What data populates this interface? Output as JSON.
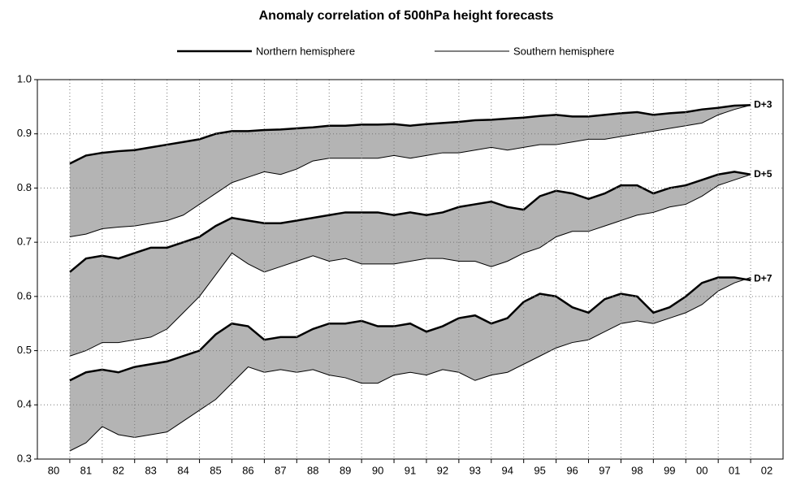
{
  "chart_data": {
    "type": "band",
    "title": "Anomaly correlation of 500hPa height forecasts",
    "legend": {
      "northern": {
        "name": "Northern hemisphere",
        "width": 2.5
      },
      "southern": {
        "name": "Southern hemisphere",
        "width": 1
      }
    },
    "band_color": "#b4b4b4",
    "x": [
      1981,
      1981.5,
      1982,
      1982.5,
      1983,
      1983.5,
      1984,
      1984.5,
      1985,
      1985.5,
      1986,
      1986.5,
      1987,
      1987.5,
      1988,
      1988.5,
      1989,
      1989.5,
      1990,
      1990.5,
      1991,
      1991.5,
      1992,
      1992.5,
      1993,
      1993.5,
      1994,
      1994.5,
      1995,
      1995.5,
      1996,
      1996.5,
      1997,
      1997.5,
      1998,
      1998.5,
      1999,
      1999.5,
      2000,
      2000.5,
      2001,
      2001.5,
      2002
    ],
    "bands": [
      {
        "label": "D+3",
        "northern": [
          0.845,
          0.86,
          0.865,
          0.868,
          0.87,
          0.875,
          0.88,
          0.885,
          0.89,
          0.9,
          0.905,
          0.905,
          0.907,
          0.908,
          0.91,
          0.912,
          0.915,
          0.915,
          0.917,
          0.917,
          0.918,
          0.915,
          0.918,
          0.92,
          0.922,
          0.925,
          0.926,
          0.928,
          0.93,
          0.933,
          0.935,
          0.932,
          0.932,
          0.935,
          0.938,
          0.94,
          0.935,
          0.938,
          0.94,
          0.945,
          0.948,
          0.952,
          0.953
        ],
        "southern": [
          0.71,
          0.715,
          0.725,
          0.728,
          0.73,
          0.735,
          0.74,
          0.75,
          0.77,
          0.79,
          0.81,
          0.82,
          0.83,
          0.825,
          0.835,
          0.85,
          0.855,
          0.855,
          0.855,
          0.855,
          0.86,
          0.855,
          0.86,
          0.865,
          0.865,
          0.87,
          0.875,
          0.87,
          0.875,
          0.88,
          0.88,
          0.885,
          0.89,
          0.89,
          0.895,
          0.9,
          0.905,
          0.91,
          0.915,
          0.92,
          0.935,
          0.945,
          0.953
        ]
      },
      {
        "label": "D+5",
        "northern": [
          0.645,
          0.67,
          0.675,
          0.67,
          0.68,
          0.69,
          0.69,
          0.7,
          0.71,
          0.73,
          0.745,
          0.74,
          0.735,
          0.735,
          0.74,
          0.745,
          0.75,
          0.755,
          0.755,
          0.755,
          0.75,
          0.755,
          0.75,
          0.755,
          0.765,
          0.77,
          0.775,
          0.765,
          0.76,
          0.785,
          0.795,
          0.79,
          0.78,
          0.79,
          0.805,
          0.805,
          0.79,
          0.8,
          0.805,
          0.815,
          0.825,
          0.83,
          0.825
        ],
        "southern": [
          0.49,
          0.5,
          0.515,
          0.515,
          0.52,
          0.525,
          0.54,
          0.57,
          0.6,
          0.64,
          0.68,
          0.66,
          0.645,
          0.655,
          0.665,
          0.675,
          0.665,
          0.67,
          0.66,
          0.66,
          0.66,
          0.665,
          0.67,
          0.67,
          0.665,
          0.665,
          0.655,
          0.665,
          0.68,
          0.69,
          0.71,
          0.72,
          0.72,
          0.73,
          0.74,
          0.75,
          0.755,
          0.765,
          0.77,
          0.785,
          0.805,
          0.815,
          0.825
        ]
      },
      {
        "label": "D+7",
        "northern": [
          0.445,
          0.46,
          0.465,
          0.46,
          0.47,
          0.475,
          0.48,
          0.49,
          0.5,
          0.53,
          0.55,
          0.545,
          0.52,
          0.525,
          0.525,
          0.54,
          0.55,
          0.55,
          0.555,
          0.545,
          0.545,
          0.55,
          0.535,
          0.545,
          0.56,
          0.565,
          0.55,
          0.56,
          0.59,
          0.605,
          0.6,
          0.58,
          0.57,
          0.595,
          0.605,
          0.6,
          0.57,
          0.58,
          0.6,
          0.625,
          0.635,
          0.635,
          0.63
        ],
        "southern": [
          0.315,
          0.33,
          0.36,
          0.345,
          0.34,
          0.345,
          0.35,
          0.37,
          0.39,
          0.41,
          0.44,
          0.47,
          0.46,
          0.465,
          0.46,
          0.465,
          0.455,
          0.45,
          0.44,
          0.44,
          0.455,
          0.46,
          0.455,
          0.465,
          0.46,
          0.445,
          0.455,
          0.46,
          0.475,
          0.49,
          0.505,
          0.515,
          0.52,
          0.535,
          0.55,
          0.555,
          0.55,
          0.56,
          0.57,
          0.585,
          0.61,
          0.625,
          0.635
        ]
      }
    ],
    "xlim": [
      1980,
      2003
    ],
    "xticks": [
      {
        "value": 1980.5,
        "label": "80"
      },
      {
        "value": 1981.5,
        "label": "81"
      },
      {
        "value": 1982.5,
        "label": "82"
      },
      {
        "value": 1983.5,
        "label": "83"
      },
      {
        "value": 1984.5,
        "label": "84"
      },
      {
        "value": 1985.5,
        "label": "85"
      },
      {
        "value": 1986.5,
        "label": "86"
      },
      {
        "value": 1987.5,
        "label": "87"
      },
      {
        "value": 1988.5,
        "label": "88"
      },
      {
        "value": 1989.5,
        "label": "89"
      },
      {
        "value": 1990.5,
        "label": "90"
      },
      {
        "value": 1991.5,
        "label": "91"
      },
      {
        "value": 1992.5,
        "label": "92"
      },
      {
        "value": 1993.5,
        "label": "93"
      },
      {
        "value": 1994.5,
        "label": "94"
      },
      {
        "value": 1995.5,
        "label": "95"
      },
      {
        "value": 1996.5,
        "label": "96"
      },
      {
        "value": 1997.5,
        "label": "97"
      },
      {
        "value": 1998.5,
        "label": "98"
      },
      {
        "value": 1999.5,
        "label": "99"
      },
      {
        "value": 2000.5,
        "label": "00"
      },
      {
        "value": 2001.5,
        "label": "01"
      },
      {
        "value": 2002.5,
        "label": "02"
      }
    ],
    "xgrid": [
      1981,
      1982,
      1983,
      1984,
      1985,
      1986,
      1987,
      1988,
      1989,
      1990,
      1991,
      1992,
      1993,
      1994,
      1995,
      1996,
      1997,
      1998,
      1999,
      2000,
      2001,
      2002
    ],
    "ylim": [
      0.3,
      1.0
    ],
    "yticks": [
      0.3,
      0.4,
      0.5,
      0.6,
      0.7,
      0.8,
      0.9,
      {
        "value": 1.0,
        "label": "1.0"
      }
    ],
    "grid": true
  }
}
